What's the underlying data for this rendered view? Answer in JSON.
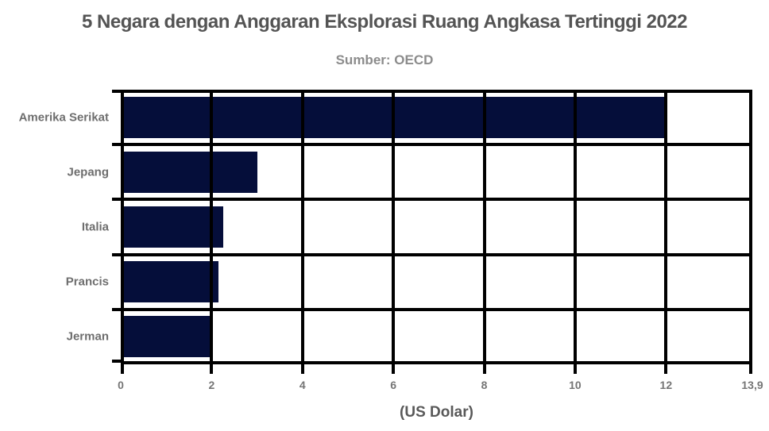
{
  "chart_data": {
    "type": "bar",
    "orientation": "horizontal",
    "title": "5 Negara dengan Anggaran Eksplorasi Ruang Angkasa Tertinggi 2022",
    "subtitle": "Sumber: OECD",
    "categories": [
      "Amerika Serikat",
      "Jepang",
      "Italia",
      "Prancis",
      "Jerman"
    ],
    "values": [
      12.0,
      3.0,
      2.25,
      2.15,
      1.95
    ],
    "xlabel": "(US Dolar)",
    "xlim": [
      0,
      13.9
    ],
    "x_ticks": [
      0,
      2,
      4,
      6,
      8,
      10,
      12,
      13.9
    ],
    "x_tick_labels": [
      "0",
      "2",
      "4",
      "6",
      "8",
      "10",
      "12",
      "13,9"
    ],
    "grid": true,
    "legend": "none",
    "bar_color": "#050e3a",
    "grid_color": "#000000",
    "title_color": "#545454",
    "subtitle_color": "#8c8c8c"
  }
}
